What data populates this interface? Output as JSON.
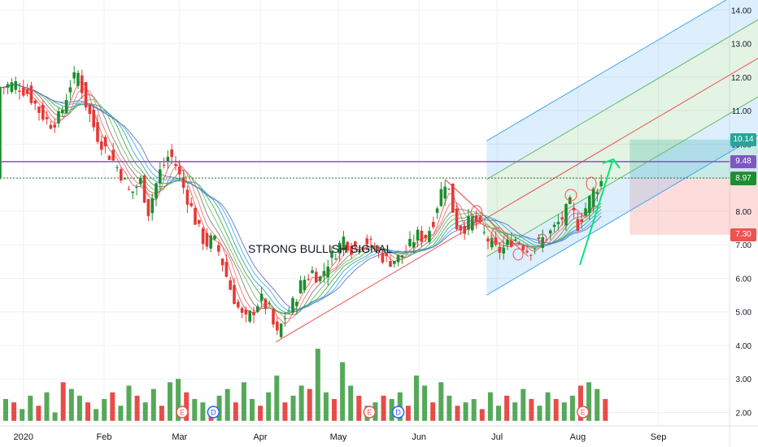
{
  "chart_data": {
    "type": "candlestick",
    "annotation": "STRONG BULLISH SIGNAL",
    "ylim": [
      1.6,
      14.3
    ],
    "y_ticks": [
      2,
      3,
      4,
      5,
      6,
      7,
      8,
      9,
      10,
      11,
      12,
      13,
      14
    ],
    "y_tick_labels": [
      "2.00",
      "3.00",
      "4.00",
      "5.00",
      "6.00",
      "7.00",
      "8.00",
      "9.00",
      "10.00",
      "11.00",
      "12.00",
      "13.00",
      "14.00"
    ],
    "x_labels": [
      "2020",
      "Feb",
      "Mar",
      "Apr",
      "May",
      "Jun",
      "Jul",
      "Aug",
      "Sep"
    ],
    "x_label_days": [
      1,
      32,
      61,
      92,
      122,
      153,
      183,
      214,
      245
    ],
    "xlim": [
      -8,
      285
    ],
    "price_tags": [
      {
        "label": "10.14",
        "value": 10.14,
        "color": "#26a69a"
      },
      {
        "label": "9.48",
        "value": 9.48,
        "color": "#7e57c2"
      },
      {
        "label": "8.99",
        "value": 8.99,
        "color": "#787b86"
      },
      {
        "label": "8.97",
        "value": 8.97,
        "color": "#1b8f2e"
      },
      {
        "label": "7.30",
        "value": 7.3,
        "color": "#ef5350"
      }
    ],
    "horizontal_lines": [
      {
        "value": 9.48,
        "color": "#7e57c2",
        "style": "solid"
      },
      {
        "value": 8.99,
        "color": "#2e7d32",
        "style": "dotted"
      }
    ],
    "position_box": {
      "x_start": 234,
      "x_end": 285,
      "entry": 8.99,
      "target": 10.14,
      "stop": 7.3
    },
    "event_markers": [
      {
        "label": "E",
        "day": 62,
        "color": "#ef5350"
      },
      {
        "label": "D",
        "day": 74,
        "color": "#2962ff"
      },
      {
        "label": "E",
        "day": 134,
        "color": "#ef5350"
      },
      {
        "label": "D",
        "day": 145,
        "color": "#2962ff"
      },
      {
        "label": "E",
        "day": 216,
        "color": "#ef5350"
      }
    ],
    "price_series": [
      {
        "day": -8,
        "close": 11.7
      },
      {
        "day": -2,
        "close": 11.8
      },
      {
        "day": 3,
        "close": 11.5
      },
      {
        "day": 7,
        "close": 11.0
      },
      {
        "day": 11,
        "close": 10.6
      },
      {
        "day": 15,
        "close": 10.8
      },
      {
        "day": 19,
        "close": 11.8
      },
      {
        "day": 22,
        "close": 12.1
      },
      {
        "day": 25,
        "close": 11.2
      },
      {
        "day": 29,
        "close": 10.3
      },
      {
        "day": 33,
        "close": 9.8
      },
      {
        "day": 38,
        "close": 9.2
      },
      {
        "day": 42,
        "close": 8.5
      },
      {
        "day": 46,
        "close": 8.9
      },
      {
        "day": 49,
        "close": 8.0
      },
      {
        "day": 53,
        "close": 9.1
      },
      {
        "day": 57,
        "close": 9.7
      },
      {
        "day": 59,
        "close": 9.5
      },
      {
        "day": 62,
        "close": 8.8
      },
      {
        "day": 65,
        "close": 8.2
      },
      {
        "day": 68,
        "close": 7.5
      },
      {
        "day": 71,
        "close": 7.0
      },
      {
        "day": 74,
        "close": 7.2
      },
      {
        "day": 77,
        "close": 6.6
      },
      {
        "day": 80,
        "close": 5.8
      },
      {
        "day": 83,
        "close": 5.2
      },
      {
        "day": 86,
        "close": 4.7
      },
      {
        "day": 89,
        "close": 5.0
      },
      {
        "day": 92,
        "close": 5.4
      },
      {
        "day": 96,
        "close": 5.0
      },
      {
        "day": 98,
        "close": 4.2
      },
      {
        "day": 101,
        "close": 4.8
      },
      {
        "day": 105,
        "close": 5.3
      },
      {
        "day": 108,
        "close": 5.9
      },
      {
        "day": 112,
        "close": 6.2
      },
      {
        "day": 115,
        "close": 6.0
      },
      {
        "day": 118,
        "close": 6.5
      },
      {
        "day": 121,
        "close": 6.8
      },
      {
        "day": 124,
        "close": 7.2
      },
      {
        "day": 127,
        "close": 6.9
      },
      {
        "day": 130,
        "close": 7.0
      },
      {
        "day": 133,
        "close": 7.1
      },
      {
        "day": 137,
        "close": 6.8
      },
      {
        "day": 141,
        "close": 6.5
      },
      {
        "day": 145,
        "close": 6.6
      },
      {
        "day": 149,
        "close": 6.9
      },
      {
        "day": 152,
        "close": 7.3
      },
      {
        "day": 155,
        "close": 7.2
      },
      {
        "day": 158,
        "close": 7.6
      },
      {
        "day": 161,
        "close": 8.5
      },
      {
        "day": 163,
        "close": 8.9
      },
      {
        "day": 165,
        "close": 8.5
      },
      {
        "day": 167,
        "close": 7.6
      },
      {
        "day": 170,
        "close": 7.5
      },
      {
        "day": 174,
        "close": 7.8
      },
      {
        "day": 177,
        "close": 7.4
      },
      {
        "day": 180,
        "close": 7.1
      },
      {
        "day": 183,
        "close": 6.8
      },
      {
        "day": 186,
        "close": 6.9
      },
      {
        "day": 189,
        "close": 7.2
      },
      {
        "day": 192,
        "close": 7.1
      },
      {
        "day": 195,
        "close": 6.8
      },
      {
        "day": 198,
        "close": 7.0
      },
      {
        "day": 201,
        "close": 7.2
      },
      {
        "day": 204,
        "close": 7.4
      },
      {
        "day": 208,
        "close": 7.8
      },
      {
        "day": 211,
        "close": 8.2
      },
      {
        "day": 214,
        "close": 7.6
      },
      {
        "day": 217,
        "close": 8.1
      },
      {
        "day": 220,
        "close": 8.6
      },
      {
        "day": 224,
        "close": 8.97
      }
    ],
    "volume": [
      2.4,
      2.3,
      2.1,
      2.5,
      2.2,
      2.6,
      2.0,
      2.9,
      2.7,
      2.5,
      2.3,
      2.1,
      2.4,
      2.6,
      2.2,
      2.8,
      2.5,
      2.3,
      2.7,
      2.2,
      2.9,
      3.0,
      2.6,
      2.4,
      2.3,
      2.1,
      2.5,
      2.7,
      2.3,
      2.9,
      2.4,
      2.2,
      2.6,
      3.1,
      2.3,
      2.5,
      2.8,
      2.7,
      3.9,
      2.6,
      2.4,
      3.5,
      2.8,
      2.5,
      2.2,
      2.3,
      2.5,
      2.4,
      2.6,
      2.2,
      3.1,
      2.8,
      2.3,
      2.9,
      2.5,
      2.2,
      2.3,
      2.4,
      2.1,
      2.6,
      2.2,
      2.5,
      2.3,
      2.7,
      2.4,
      2.2,
      2.6,
      2.4,
      2.3,
      2.5,
      2.8,
      2.9,
      2.7,
      2.4
    ]
  }
}
